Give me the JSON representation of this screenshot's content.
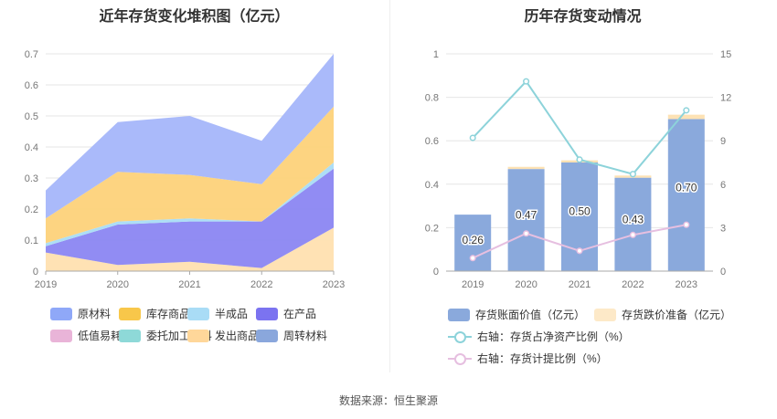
{
  "left_chart": {
    "title": "近年存货变化堆积图（亿元）",
    "legend": [
      {
        "label": "原材料",
        "color": "#8fa8f8"
      },
      {
        "label": "库存商品",
        "color": "#f8c74a"
      },
      {
        "label": "半成品",
        "color": "#a9dcf6"
      },
      {
        "label": "在产品",
        "color": "#7b73f0"
      },
      {
        "label": "低值易耗品",
        "color": "#e9b4d8"
      },
      {
        "label": "委托加工材料",
        "color": "#8ed9d8"
      },
      {
        "label": "发出商品",
        "color": "#ffd79a"
      },
      {
        "label": "周转材料",
        "color": "#8aa7dc"
      }
    ]
  },
  "right_chart": {
    "title": "历年存货变动情况",
    "legend": [
      {
        "label": "存货账面价值（亿元）",
        "color": "#8aa9dc",
        "kind": "box"
      },
      {
        "label": "存货跌价准备（亿元）",
        "color": "#fde9c8",
        "kind": "box"
      },
      {
        "label": "右轴：存货占净资产比例（%）",
        "color": "#8dd3da",
        "kind": "line"
      },
      {
        "label": "右轴：存货计提比例（%）",
        "color": "#e6bfe0",
        "kind": "line"
      }
    ]
  },
  "source": "数据来源：恒生聚源",
  "chart_data": [
    {
      "type": "area",
      "stacked": true,
      "title": "近年存货变化堆积图（亿元）",
      "x": [
        "2019",
        "2020",
        "2021",
        "2022",
        "2023"
      ],
      "ylim": [
        0,
        0.7
      ],
      "yticks": [
        "0",
        "0.1",
        "0.2",
        "0.3",
        "0.4",
        "0.5",
        "0.6",
        "0.7"
      ],
      "grid": true,
      "legend_position": "bottom",
      "series": [
        {
          "name": "发出商品",
          "color": "#ffe0b0",
          "values": [
            0.06,
            0.02,
            0.03,
            0.01,
            0.14
          ]
        },
        {
          "name": "在产品",
          "color": "#8b86f2",
          "values": [
            0.02,
            0.13,
            0.13,
            0.15,
            0.19
          ]
        },
        {
          "name": "半成品",
          "color": "#a9dcf6",
          "values": [
            0.01,
            0.01,
            0.01,
            0.0,
            0.02
          ]
        },
        {
          "name": "库存商品",
          "color": "#fdd27a",
          "values": [
            0.08,
            0.16,
            0.14,
            0.12,
            0.18
          ]
        },
        {
          "name": "原材料",
          "color": "#a5b6fa",
          "values": [
            0.09,
            0.16,
            0.19,
            0.14,
            0.17
          ]
        }
      ]
    },
    {
      "type": "bar",
      "title": "历年存货变动情况",
      "categories": [
        "2019",
        "2020",
        "2021",
        "2022",
        "2023"
      ],
      "ylim": [
        0,
        1
      ],
      "yticks": [
        "0",
        "0.2",
        "0.4",
        "0.6",
        "0.8",
        "1"
      ],
      "y2lim": [
        0,
        15
      ],
      "y2ticks": [
        "0",
        "3",
        "6",
        "9",
        "12",
        "15"
      ],
      "grid": true,
      "legend_position": "bottom",
      "series": [
        {
          "name": "存货账面价值（亿元）",
          "type": "bar",
          "color": "#8aa9dc",
          "values": [
            0.26,
            0.47,
            0.5,
            0.43,
            0.7
          ],
          "labels": [
            "0.26",
            "0.47",
            "0.50",
            "0.43",
            "0.70"
          ]
        },
        {
          "name": "存货跌价准备（亿元）",
          "type": "bar",
          "stacked": true,
          "color": "#fde2b4",
          "values": [
            0.0,
            0.01,
            0.01,
            0.01,
            0.02
          ]
        },
        {
          "name": "右轴：存货占净资产比例（%）",
          "type": "line",
          "axis": "right",
          "color": "#8dd3da",
          "values": [
            9.2,
            13.1,
            7.7,
            6.7,
            11.1
          ]
        },
        {
          "name": "右轴：存货计提比例（%）",
          "type": "line",
          "axis": "right",
          "color": "#e6bfe0",
          "values": [
            0.9,
            2.6,
            1.4,
            2.5,
            3.2
          ]
        }
      ]
    }
  ]
}
